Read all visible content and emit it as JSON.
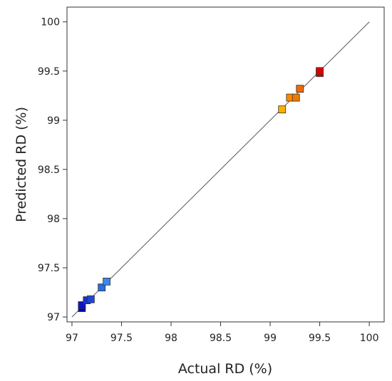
{
  "chart_data": {
    "type": "scatter",
    "xlabel": "Actual RD (%)",
    "ylabel": "Predicted RD (%)",
    "xlim": [
      96.95,
      100.15
    ],
    "ylim": [
      96.95,
      100.15
    ],
    "x_ticks": [
      97,
      97.5,
      98,
      98.5,
      99,
      99.5,
      100
    ],
    "y_ticks": [
      97,
      97.5,
      98,
      98.5,
      99,
      99.5,
      100
    ],
    "tick_labels": [
      "97",
      "97.5",
      "98",
      "98.5",
      "99",
      "99.5",
      "100"
    ],
    "reference_line": {
      "from": [
        97,
        97
      ],
      "to": [
        100,
        100
      ]
    },
    "grid": false,
    "legend": "none",
    "colors": {
      "low": "#0000c8",
      "mid_low": "#2a6fdb",
      "mid_high": "#ff8c00",
      "high": "#e60000"
    },
    "points": [
      {
        "x": 97.1,
        "y": 97.09,
        "color": "#0000c0"
      },
      {
        "x": 97.1,
        "y": 97.12,
        "color": "#0a14c8"
      },
      {
        "x": 97.15,
        "y": 97.17,
        "color": "#1432d2"
      },
      {
        "x": 97.19,
        "y": 97.18,
        "color": "#1e46d8"
      },
      {
        "x": 97.3,
        "y": 97.3,
        "color": "#2a6ee0"
      },
      {
        "x": 97.35,
        "y": 97.36,
        "color": "#3a88e8"
      },
      {
        "x": 99.12,
        "y": 99.11,
        "color": "#ffb000"
      },
      {
        "x": 99.2,
        "y": 99.23,
        "color": "#ff8800"
      },
      {
        "x": 99.26,
        "y": 99.23,
        "color": "#f07a00"
      },
      {
        "x": 99.3,
        "y": 99.32,
        "color": "#f06800"
      },
      {
        "x": 99.5,
        "y": 99.48,
        "color": "#d80000"
      },
      {
        "x": 99.5,
        "y": 99.5,
        "color": "#e00000"
      }
    ]
  }
}
